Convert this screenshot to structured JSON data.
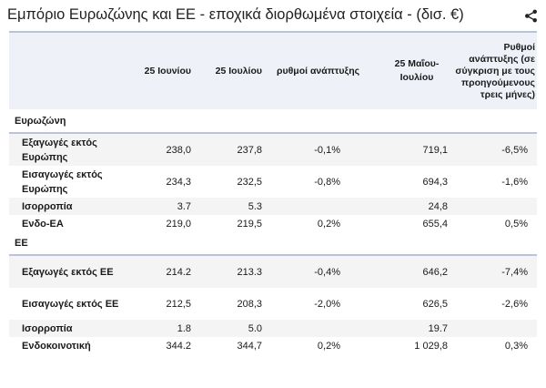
{
  "title": "Εμπόριο Ευρωζώνης και ΕΕ - εποχικά διορθωμένα στοιχεία - (δισ. €)",
  "share_icon": "share-icon",
  "colors": {
    "header_bg": "#eef2f8",
    "section_rule": "#b7c4dc",
    "row_alt_bg": "#f4f4f4"
  },
  "headers": {
    "col0": "",
    "col1": "25 Ιουνίου",
    "col2": "25 Ιουλίου",
    "col3": "ρυθμοί ανάπτυξης",
    "col4": "25 Μαΐου-Ιουλίου",
    "col5": "Ρυθμοί ανάπτυξης (σε σύγκριση με τους προηγούμενους τρεις μήνες)"
  },
  "sections": [
    {
      "name": "Ευρωζώνη",
      "rows": [
        {
          "label": "Εξαγωγές εκτός Ευρώπης",
          "c1": "238,0",
          "c2": "237,8",
          "c3": "-0,1%",
          "c4": "719,1",
          "c5": "-6,5%"
        },
        {
          "label": "Εισαγωγές εκτός Ευρώπης",
          "c1": "234,3",
          "c2": "232,5",
          "c3": "-0,8%",
          "c4": "694,3",
          "c5": "-1,6%"
        },
        {
          "label": "Ισορροπία",
          "c1": "3.7",
          "c2": "5.3",
          "c3": "",
          "c4": "24,8",
          "c5": ""
        },
        {
          "label": "Ενδο-ΕΑ",
          "c1": "219,0",
          "c2": "219,5",
          "c3": "0,2%",
          "c4": "655,4",
          "c5": "0,5%"
        }
      ]
    },
    {
      "name": "ΕΕ",
      "rows": [
        {
          "label": "Εξαγωγές εκτός ΕΕ",
          "c1": "214.2",
          "c2": "213.3",
          "c3": "-0,4%",
          "c4": "646,2",
          "c5": "-7,4%"
        },
        {
          "label": "Εισαγωγές εκτός ΕΕ",
          "c1": "212,5",
          "c2": "208,3",
          "c3": "-2,0%",
          "c4": "626,5",
          "c5": "-2,6%"
        },
        {
          "label": "Ισορροπία",
          "c1": "1.8",
          "c2": "5.0",
          "c3": "",
          "c4": "19.7",
          "c5": ""
        },
        {
          "label": "Ενδοκοινοτική",
          "c1": "344.2",
          "c2": "344,7",
          "c3": "0,2%",
          "c4": "1 029,8",
          "c5": "0,3%"
        }
      ]
    }
  ]
}
